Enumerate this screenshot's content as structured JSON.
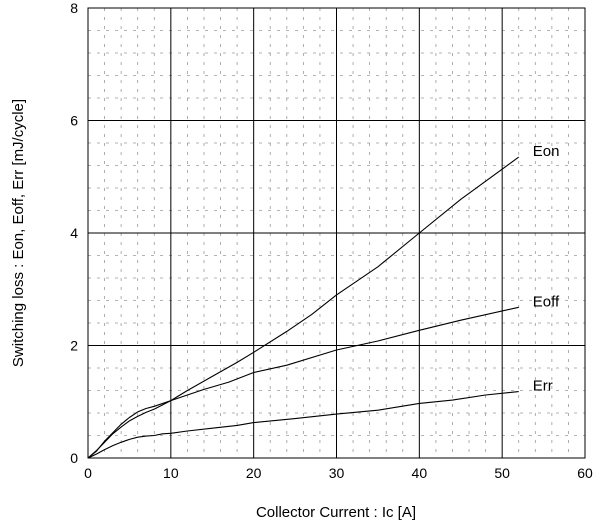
{
  "chart_data": {
    "type": "line",
    "title": "",
    "xlabel": "Collector Current : Ic [A]",
    "ylabel": "Switching loss : Eon, Eoff, Err [mJ/cycle]",
    "xlim": [
      0,
      60
    ],
    "ylim": [
      0,
      8
    ],
    "xticks": [
      0,
      10,
      20,
      30,
      40,
      50,
      60
    ],
    "yticks": [
      0,
      2,
      4,
      6,
      8
    ],
    "grid": true,
    "minor_grid": "dashed",
    "legend": "labels at line ends",
    "line_color": "#000000",
    "series": [
      {
        "name": "Eon",
        "x": [
          0,
          1,
          2,
          3,
          4,
          5,
          6,
          7,
          8,
          10,
          12,
          15,
          18,
          20,
          24,
          27,
          30,
          35,
          40,
          45,
          52
        ],
        "y": [
          0,
          0.13,
          0.28,
          0.43,
          0.55,
          0.66,
          0.74,
          0.81,
          0.87,
          1.02,
          1.2,
          1.45,
          1.7,
          1.88,
          2.25,
          2.55,
          2.9,
          3.4,
          4.0,
          4.6,
          5.35
        ]
      },
      {
        "name": "Eoff",
        "x": [
          0,
          1,
          2,
          3,
          4,
          5,
          6,
          7,
          8,
          10,
          12,
          14,
          17,
          20,
          24,
          30,
          35,
          40,
          45,
          52
        ],
        "y": [
          0,
          0.12,
          0.3,
          0.45,
          0.6,
          0.72,
          0.82,
          0.88,
          0.92,
          1.02,
          1.12,
          1.22,
          1.35,
          1.52,
          1.65,
          1.92,
          2.08,
          2.27,
          2.45,
          2.68
        ]
      },
      {
        "name": "Err",
        "x": [
          0,
          1,
          2,
          3,
          4,
          5,
          6,
          7,
          8,
          9,
          10,
          12,
          15,
          18,
          20,
          25,
          30,
          35,
          40,
          44,
          48,
          52
        ],
        "y": [
          0,
          0.07,
          0.15,
          0.22,
          0.28,
          0.33,
          0.37,
          0.39,
          0.4,
          0.43,
          0.44,
          0.48,
          0.53,
          0.58,
          0.63,
          0.7,
          0.78,
          0.85,
          0.97,
          1.03,
          1.12,
          1.18
        ]
      }
    ]
  }
}
